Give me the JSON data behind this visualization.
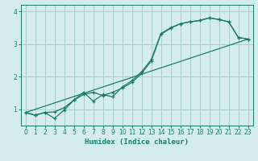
{
  "xlabel": "Humidex (Indice chaleur)",
  "background_color": "#d4edec",
  "grid_color": "#aacfcf",
  "line_color": "#1a7a6a",
  "xlim": [
    -0.5,
    23.5
  ],
  "ylim": [
    0.5,
    4.2
  ],
  "xticks": [
    0,
    1,
    2,
    3,
    4,
    5,
    6,
    7,
    8,
    9,
    10,
    11,
    12,
    13,
    14,
    15,
    16,
    17,
    18,
    19,
    20,
    21,
    22,
    23
  ],
  "yticks": [
    1,
    2,
    3,
    4
  ],
  "line1_x": [
    0,
    1,
    2,
    3,
    4,
    5,
    6,
    7,
    8,
    9,
    10,
    11,
    12,
    13,
    14,
    15,
    16,
    17,
    18,
    19,
    20,
    21,
    22,
    23
  ],
  "line1_y": [
    0.9,
    0.82,
    0.9,
    0.92,
    1.05,
    1.28,
    1.45,
    1.52,
    1.42,
    1.52,
    1.65,
    1.82,
    2.1,
    2.48,
    3.3,
    3.48,
    3.62,
    3.68,
    3.72,
    3.8,
    3.75,
    3.68,
    3.2,
    3.15
  ],
  "line2_x": [
    0,
    1,
    2,
    3,
    4,
    5,
    6,
    7,
    8,
    9,
    10,
    11,
    12,
    13,
    14,
    15,
    16,
    17,
    18,
    19,
    20,
    21,
    22,
    23
  ],
  "line2_y": [
    0.9,
    0.82,
    0.9,
    0.72,
    0.98,
    1.28,
    1.52,
    1.25,
    1.45,
    1.38,
    1.68,
    1.88,
    2.15,
    2.52,
    3.32,
    3.5,
    3.62,
    3.68,
    3.72,
    3.8,
    3.75,
    3.68,
    3.2,
    3.15
  ],
  "trend_x": [
    0,
    23
  ],
  "trend_y": [
    0.9,
    3.15
  ]
}
